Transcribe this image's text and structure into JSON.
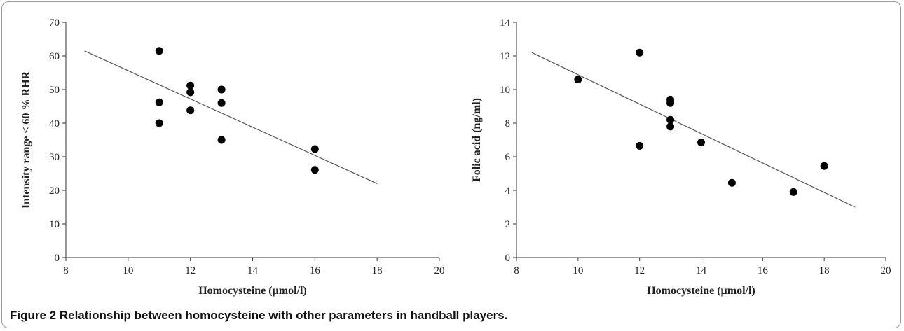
{
  "caption": "Figure 2 Relationship between homocysteine with other parameters in handball players.",
  "chart_data": [
    {
      "type": "scatter",
      "xlabel": "Homocysteine (µmol/l)",
      "ylabel": "Intensity range < 60 % RHR",
      "xlim": [
        8,
        20
      ],
      "ylim": [
        0,
        70
      ],
      "xticks": [
        8,
        10,
        12,
        14,
        16,
        18,
        20
      ],
      "yticks": [
        0,
        10,
        20,
        30,
        40,
        50,
        60,
        70
      ],
      "grid": false,
      "series": [
        {
          "x": [
            11,
            11,
            11,
            12,
            12,
            12,
            13,
            13,
            13,
            16,
            16
          ],
          "y": [
            61.5,
            46.2,
            40.0,
            51.2,
            49.2,
            43.8,
            50.0,
            46.0,
            35.0,
            32.3,
            26.1
          ],
          "color": "#000000"
        }
      ],
      "trendline": {
        "x": [
          8.6,
          18
        ],
        "y": [
          61.5,
          22.0
        ]
      }
    },
    {
      "type": "scatter",
      "xlabel": "Homocysteine (µmol/l)",
      "ylabel": "Folic acid (ng/ml)",
      "xlim": [
        8,
        20
      ],
      "ylim": [
        0,
        14
      ],
      "xticks": [
        8,
        10,
        12,
        14,
        16,
        18,
        20
      ],
      "yticks": [
        0,
        2,
        4,
        6,
        8,
        10,
        12,
        14
      ],
      "grid": false,
      "series": [
        {
          "x": [
            10,
            12,
            12,
            13,
            13,
            13,
            13,
            14,
            15,
            17,
            18
          ],
          "y": [
            10.6,
            12.2,
            6.65,
            9.4,
            9.2,
            8.2,
            7.8,
            6.85,
            4.45,
            3.9,
            5.45
          ],
          "color": "#000000"
        }
      ],
      "trendline": {
        "x": [
          8.5,
          19
        ],
        "y": [
          12.2,
          3.0
        ]
      }
    }
  ]
}
